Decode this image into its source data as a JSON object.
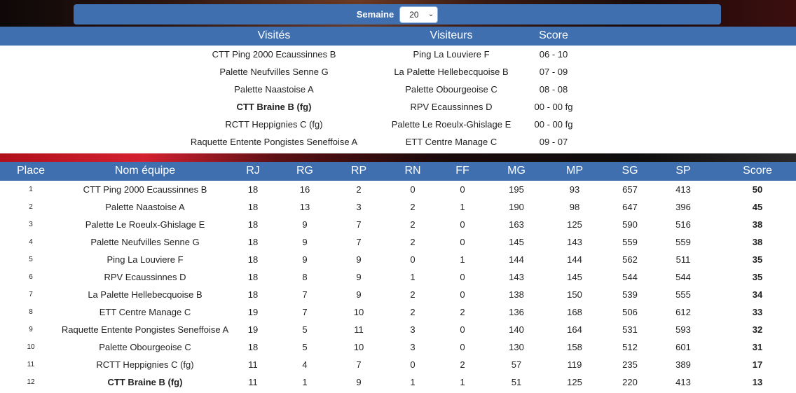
{
  "week": {
    "label": "Semaine",
    "selected": "20"
  },
  "matches": {
    "headers": {
      "home": "Visités",
      "away": "Visiteurs",
      "score": "Score"
    },
    "rows": [
      {
        "home": "CTT Ping 2000 Ecaussinnes B",
        "away": "Ping La Louviere F",
        "score": "06 - 10",
        "bold": false
      },
      {
        "home": "Palette Neufvilles Senne G",
        "away": "La Palette Hellebecquoise B",
        "score": "07 - 09",
        "bold": false
      },
      {
        "home": "Palette Naastoise A",
        "away": "Palette Obourgeoise C",
        "score": "08 - 08",
        "bold": false
      },
      {
        "home": "CTT Braine B (fg)",
        "away": "RPV Ecaussinnes D",
        "score": "00 - 00 fg",
        "bold": true
      },
      {
        "home": "RCTT Heppignies C (fg)",
        "away": "Palette Le Roeulx-Ghislage E",
        "score": "00 - 00 fg",
        "bold": false
      },
      {
        "home": "Raquette Entente Pongistes Seneffoise A",
        "away": "ETT Centre Manage C",
        "score": "09 - 07",
        "bold": false
      }
    ]
  },
  "ranking": {
    "headers": {
      "place": "Place",
      "team": "Nom équipe",
      "rj": "RJ",
      "rg": "RG",
      "rp": "RP",
      "rn": "RN",
      "ff": "FF",
      "mg": "MG",
      "mp": "MP",
      "sg": "SG",
      "sp": "SP",
      "score": "Score"
    },
    "rows": [
      {
        "place": "1",
        "team": "CTT Ping 2000 Ecaussinnes B",
        "rj": "18",
        "rg": "16",
        "rp": "2",
        "rn": "0",
        "ff": "0",
        "mg": "195",
        "mp": "93",
        "sg": "657",
        "sp": "413",
        "score": "50",
        "bold": false
      },
      {
        "place": "2",
        "team": "Palette Naastoise A",
        "rj": "18",
        "rg": "13",
        "rp": "3",
        "rn": "2",
        "ff": "1",
        "mg": "190",
        "mp": "98",
        "sg": "647",
        "sp": "396",
        "score": "45",
        "bold": false
      },
      {
        "place": "3",
        "team": "Palette Le Roeulx-Ghislage E",
        "rj": "18",
        "rg": "9",
        "rp": "7",
        "rn": "2",
        "ff": "0",
        "mg": "163",
        "mp": "125",
        "sg": "590",
        "sp": "516",
        "score": "38",
        "bold": false
      },
      {
        "place": "4",
        "team": "Palette Neufvilles Senne G",
        "rj": "18",
        "rg": "9",
        "rp": "7",
        "rn": "2",
        "ff": "0",
        "mg": "145",
        "mp": "143",
        "sg": "559",
        "sp": "559",
        "score": "38",
        "bold": false
      },
      {
        "place": "5",
        "team": "Ping La Louviere F",
        "rj": "18",
        "rg": "9",
        "rp": "9",
        "rn": "0",
        "ff": "1",
        "mg": "144",
        "mp": "144",
        "sg": "562",
        "sp": "511",
        "score": "35",
        "bold": false
      },
      {
        "place": "6",
        "team": "RPV Ecaussinnes D",
        "rj": "18",
        "rg": "8",
        "rp": "9",
        "rn": "1",
        "ff": "0",
        "mg": "143",
        "mp": "145",
        "sg": "544",
        "sp": "544",
        "score": "35",
        "bold": false
      },
      {
        "place": "7",
        "team": "La Palette Hellebecquoise B",
        "rj": "18",
        "rg": "7",
        "rp": "9",
        "rn": "2",
        "ff": "0",
        "mg": "138",
        "mp": "150",
        "sg": "539",
        "sp": "555",
        "score": "34",
        "bold": false
      },
      {
        "place": "8",
        "team": "ETT Centre Manage C",
        "rj": "19",
        "rg": "7",
        "rp": "10",
        "rn": "2",
        "ff": "2",
        "mg": "136",
        "mp": "168",
        "sg": "506",
        "sp": "612",
        "score": "33",
        "bold": false
      },
      {
        "place": "9",
        "team": "Raquette Entente Pongistes Seneffoise A",
        "rj": "19",
        "rg": "5",
        "rp": "11",
        "rn": "3",
        "ff": "0",
        "mg": "140",
        "mp": "164",
        "sg": "531",
        "sp": "593",
        "score": "32",
        "bold": false
      },
      {
        "place": "10",
        "team": "Palette Obourgeoise C",
        "rj": "18",
        "rg": "5",
        "rp": "10",
        "rn": "3",
        "ff": "0",
        "mg": "130",
        "mp": "158",
        "sg": "512",
        "sp": "601",
        "score": "31",
        "bold": false
      },
      {
        "place": "11",
        "team": "RCTT Heppignies C (fg)",
        "rj": "11",
        "rg": "4",
        "rp": "7",
        "rn": "0",
        "ff": "2",
        "mg": "57",
        "mp": "119",
        "sg": "235",
        "sp": "389",
        "score": "17",
        "bold": false
      },
      {
        "place": "12",
        "team": "CTT Braine B (fg)",
        "rj": "11",
        "rg": "1",
        "rp": "9",
        "rn": "1",
        "ff": "1",
        "mg": "51",
        "mp": "125",
        "sg": "220",
        "sp": "413",
        "score": "13",
        "bold": true
      }
    ]
  },
  "colors": {
    "header_blue": "#3f6fae",
    "divider_red": "#d42030"
  },
  "icons": {
    "week_select_arrow": "chevron-down-icon"
  }
}
